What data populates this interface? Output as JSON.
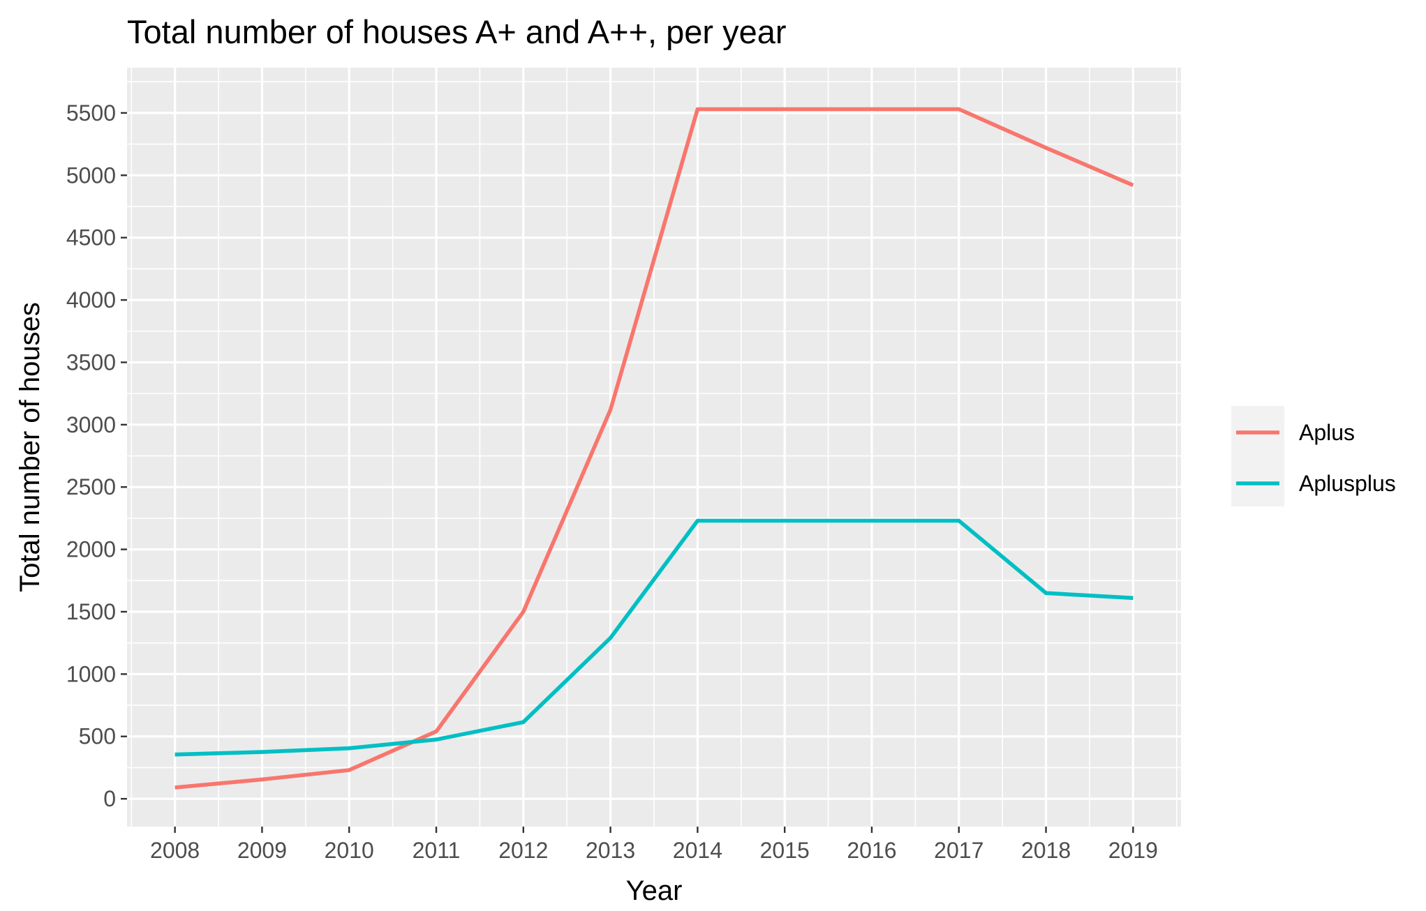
{
  "chart_data": {
    "type": "line",
    "title": "Total number of houses A+ and A++, per year",
    "xlabel": "Year",
    "ylabel": "Total number of houses",
    "x": [
      2008,
      2009,
      2010,
      2011,
      2012,
      2013,
      2014,
      2015,
      2016,
      2017,
      2018,
      2019
    ],
    "x_tick_labels": [
      "2008",
      "2009",
      "2010",
      "2011",
      "2012",
      "2013",
      "2014",
      "2015",
      "2016",
      "2017",
      "2018",
      "2019"
    ],
    "y_ticks": [
      0,
      500,
      1000,
      1500,
      2000,
      2500,
      3000,
      3500,
      4000,
      4500,
      5000,
      5500
    ],
    "y_tick_labels": [
      "0",
      "500",
      "1000",
      "1500",
      "2000",
      "2500",
      "3000",
      "3500",
      "4000",
      "4500",
      "5000",
      "5500"
    ],
    "xlim": [
      2007.45,
      2019.55
    ],
    "ylim": [
      -223,
      5863
    ],
    "grid": true,
    "legend_position": "right",
    "series": [
      {
        "name": "Aplus",
        "color": "#F8766D",
        "values": [
          90,
          155,
          230,
          540,
          1500,
          3120,
          5530,
          5530,
          5530,
          5530,
          5220,
          4920
        ]
      },
      {
        "name": "Aplusplus",
        "color": "#00BFC4",
        "values": [
          355,
          375,
          405,
          475,
          615,
          1290,
          2230,
          2230,
          2230,
          2230,
          1650,
          1610
        ]
      }
    ]
  }
}
